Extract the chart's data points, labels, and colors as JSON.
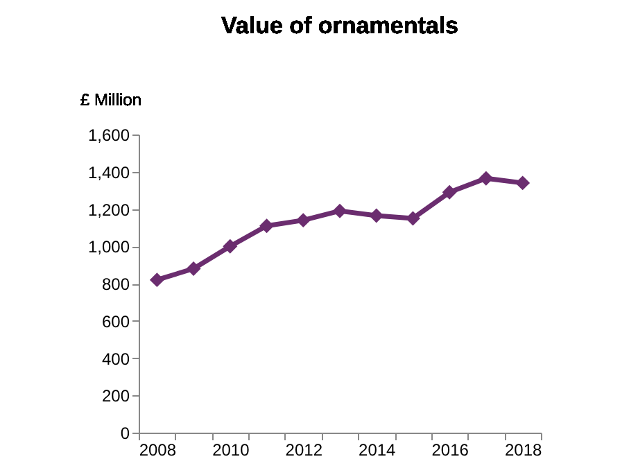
{
  "chart_data": {
    "type": "line",
    "title": "Value of ornamentals",
    "ylabel": "£ Million",
    "categories": [
      "2008",
      null,
      "2010",
      null,
      "2012",
      null,
      "2014",
      null,
      "2016",
      null,
      "2018"
    ],
    "series": [
      {
        "color": "#6b2d6f",
        "values": [
          820,
          880,
          1000,
          1110,
          1140,
          1190,
          1165,
          1150,
          1290,
          1365,
          1340
        ]
      }
    ],
    "ylim": [
      0,
      1600
    ],
    "yticks": [
      0,
      200,
      400,
      600,
      800,
      {
        "value": 1000,
        "label": "1,000"
      },
      {
        "value": 1200,
        "label": "1,200"
      },
      {
        "value": 1400,
        "label": "1,400"
      },
      {
        "value": 1600,
        "label": "1,600"
      }
    ],
    "grid": false,
    "legend": false,
    "marker": "diamond",
    "line_style": "solid"
  }
}
